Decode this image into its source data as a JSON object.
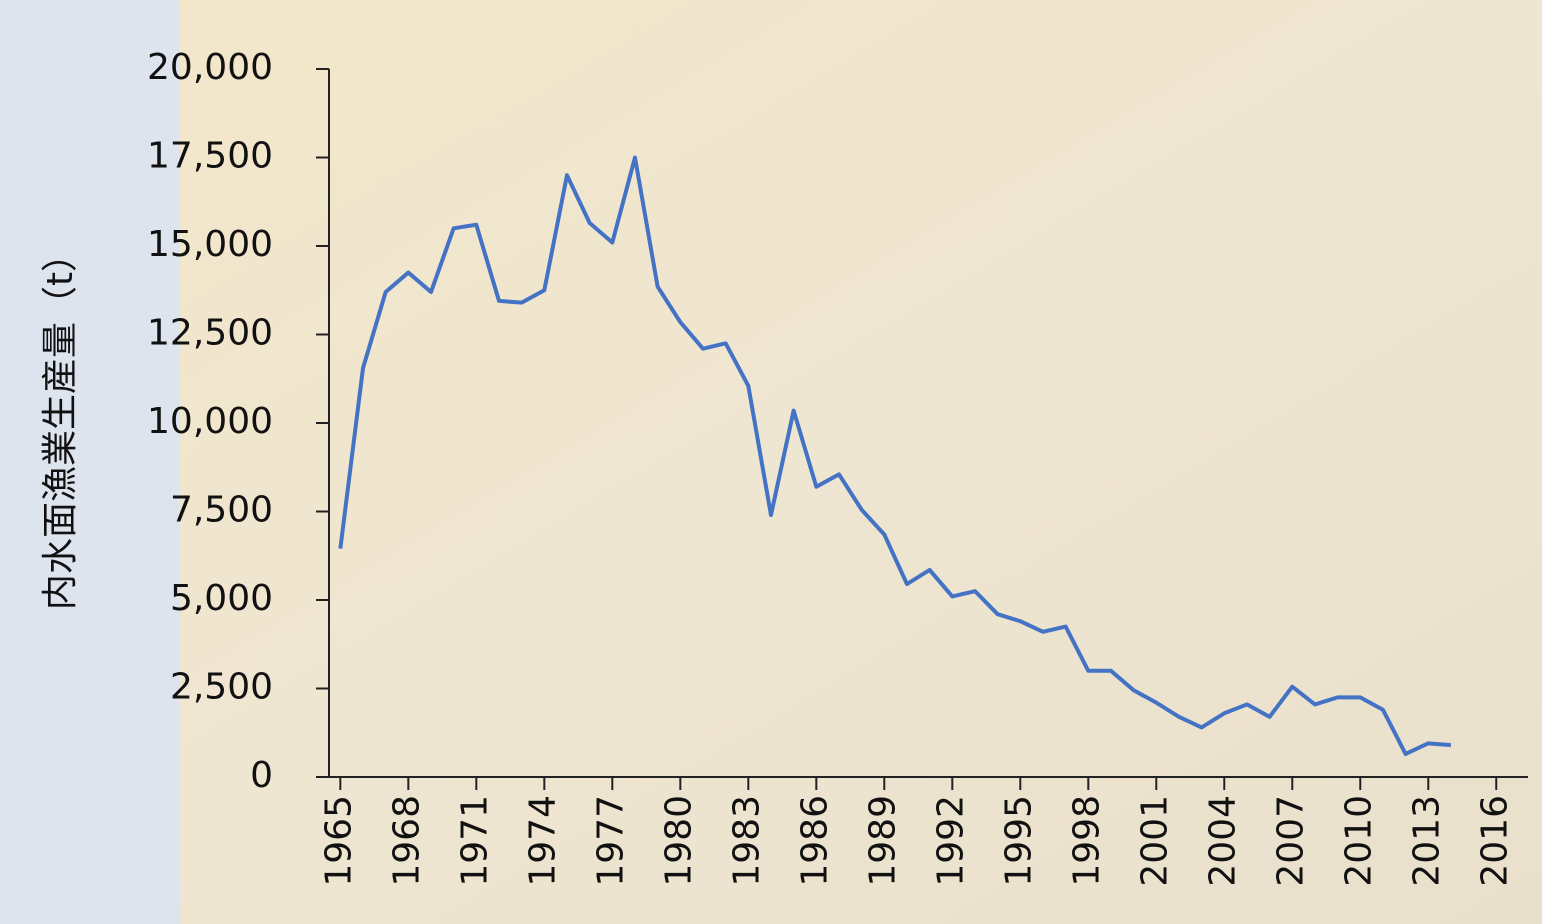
{
  "chart_data": {
    "type": "line",
    "y_label": "内水面漁業生産量（t）",
    "x": [
      1965,
      1966,
      1967,
      1968,
      1969,
      1970,
      1971,
      1972,
      1973,
      1974,
      1975,
      1976,
      1977,
      1978,
      1979,
      1980,
      1981,
      1982,
      1983,
      1984,
      1985,
      1986,
      1987,
      1988,
      1989,
      1990,
      1991,
      1992,
      1993,
      1994,
      1995,
      1996,
      1997,
      1998,
      1999,
      2000,
      2001,
      2002,
      2003,
      2004,
      2005,
      2006,
      2007,
      2008,
      2009,
      2010,
      2011,
      2012,
      2013,
      2014
    ],
    "series": [
      {
        "color": "#4472c4",
        "values": [
          6450,
          11550,
          13700,
          14250,
          13700,
          15500,
          15600,
          13450,
          13400,
          13750,
          17000,
          15650,
          15100,
          17500,
          13850,
          12850,
          12100,
          12250,
          11050,
          7400,
          10350,
          8200,
          8550,
          7550,
          6850,
          5450,
          5850,
          5100,
          5250,
          4600,
          4400,
          4100,
          4250,
          3000,
          3000,
          2450,
          2100,
          1700,
          1400,
          1800,
          2050,
          1700,
          2550,
          2050,
          2250,
          2250,
          1900,
          650,
          950,
          900
        ]
      }
    ],
    "xlim": [
      1964.5,
      2017.4
    ],
    "xticks": [
      1965,
      1968,
      1971,
      1974,
      1977,
      1980,
      1983,
      1986,
      1989,
      1992,
      1995,
      1998,
      2001,
      2004,
      2007,
      2010,
      2013,
      2016
    ],
    "ylim": [
      0,
      20000
    ],
    "yticks": [
      0,
      {
        "value": 2500,
        "label": "2,500"
      },
      {
        "value": 5000,
        "label": "5,000"
      },
      {
        "value": 7500,
        "label": "7,500"
      },
      {
        "value": 10000,
        "label": "10,000"
      },
      {
        "value": 12500,
        "label": "12,500"
      },
      {
        "value": 15000,
        "label": "15,000"
      },
      {
        "value": 17500,
        "label": "17,500"
      },
      {
        "value": 20000,
        "label": "20,000"
      }
    ]
  }
}
